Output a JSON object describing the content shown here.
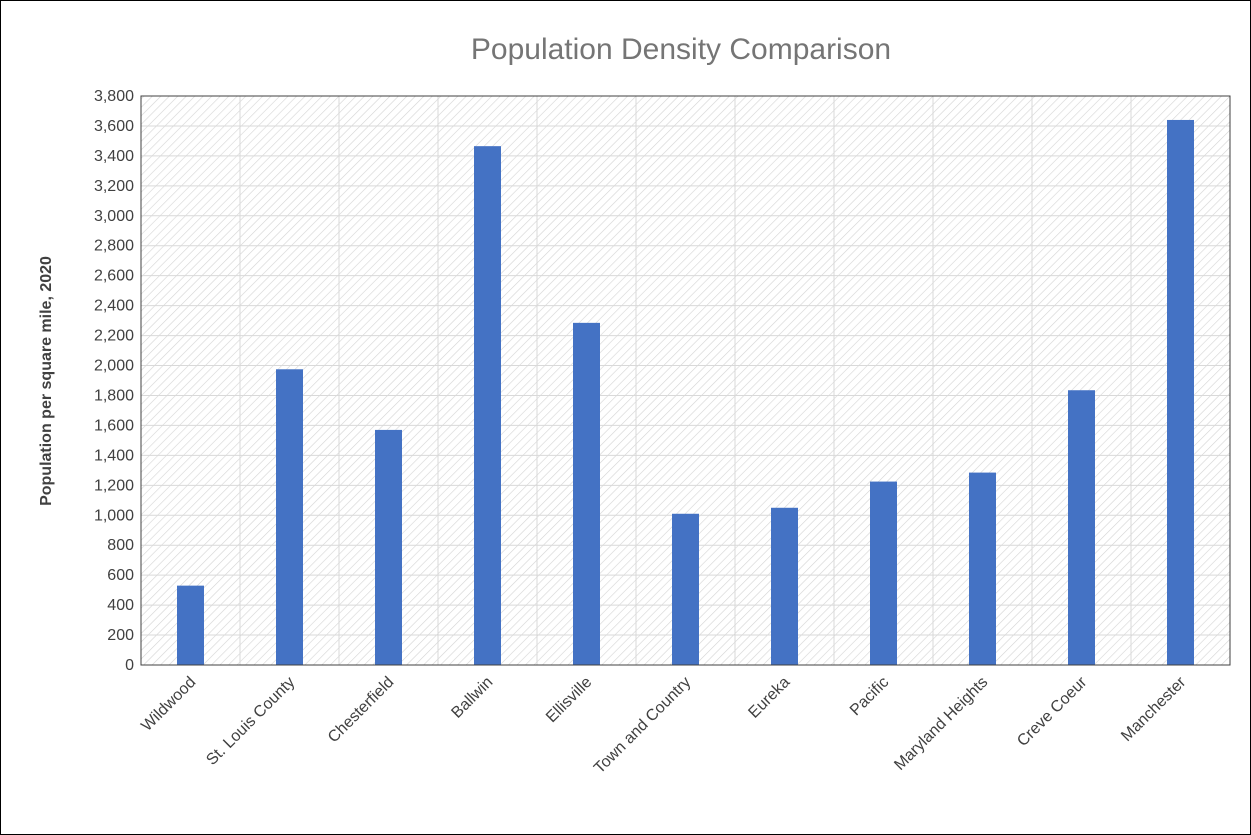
{
  "chart_data": {
    "type": "bar",
    "title": "Population Density Comparison",
    "xlabel": "",
    "ylabel": "Population per square mile, 2020",
    "categories": [
      "Wildwood",
      "St. Louis County",
      "Chesterfield",
      "Ballwin",
      "Ellisville",
      "Town and Country",
      "Eureka",
      "Pacific",
      "Maryland Heights",
      "Creve Coeur",
      "Manchester"
    ],
    "values": [
      530,
      1975,
      1570,
      3465,
      2285,
      1010,
      1050,
      1225,
      1285,
      1835,
      3640
    ],
    "ylim": [
      0,
      3800
    ],
    "ytick_step": 200,
    "yticks": [
      "0",
      "200",
      "400",
      "600",
      "800",
      "1,000",
      "1,200",
      "1,400",
      "1,600",
      "1,800",
      "2,000",
      "2,200",
      "2,400",
      "2,600",
      "2,800",
      "3,000",
      "3,200",
      "3,400",
      "3,600",
      "3,800"
    ],
    "grid": true,
    "bar_color": "#4472C4",
    "plot_background": "diagonal hatch, light gray",
    "legend": "none"
  }
}
